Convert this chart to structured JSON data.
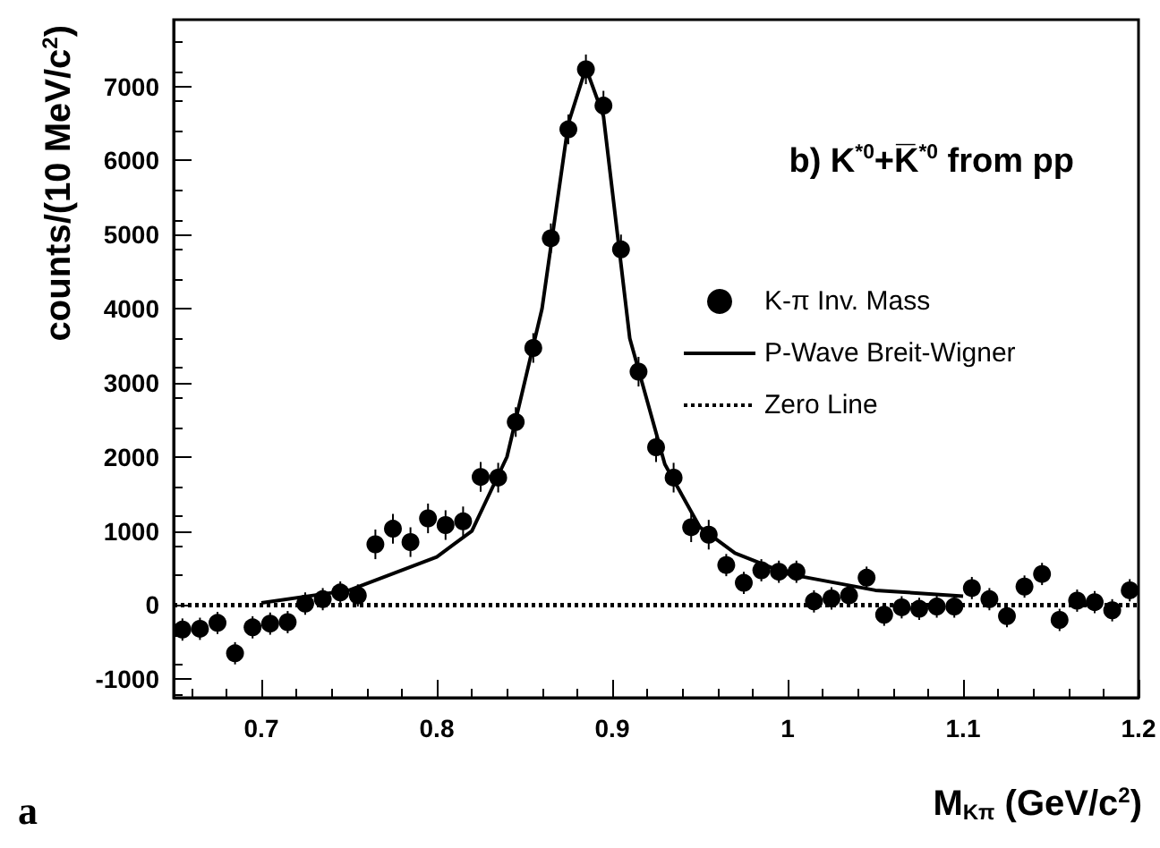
{
  "chart_data": {
    "type": "scatter",
    "title": "b) K$^{*0}$+K̅$^{*0}$ from pp",
    "xlabel": "M$_{Kπ}$ (GeV/c$^{2}$)",
    "ylabel": "counts/(10 MeV/c$^{2}$)",
    "annotations": [
      "a"
    ],
    "xlim": [
      0.65,
      1.2
    ],
    "xticks": [
      0.7,
      0.8,
      0.9,
      1,
      1.1,
      1.2
    ],
    "ylim": [
      -1250,
      7900
    ],
    "yticks": [
      -1000,
      0,
      1000,
      2000,
      3000,
      4000,
      5000,
      6000,
      7000
    ],
    "grid": false,
    "legend": "right",
    "series": [
      {
        "name": "K-π Inv. Mass",
        "color": "#000000",
        "marker": "circle",
        "x": [
          0.655,
          0.665,
          0.675,
          0.685,
          0.695,
          0.705,
          0.715,
          0.725,
          0.735,
          0.745,
          0.755,
          0.765,
          0.775,
          0.785,
          0.795,
          0.805,
          0.815,
          0.825,
          0.835,
          0.845,
          0.855,
          0.865,
          0.875,
          0.885,
          0.895,
          0.905,
          0.915,
          0.925,
          0.935,
          0.945,
          0.955,
          0.965,
          0.975,
          0.985,
          0.995,
          1.005,
          1.015,
          1.025,
          1.035,
          1.045,
          1.055,
          1.065,
          1.075,
          1.085,
          1.095,
          1.105,
          1.115,
          1.125,
          1.135,
          1.145,
          1.155,
          1.165,
          1.175,
          1.185,
          1.195
        ],
        "values": [
          -330,
          -320,
          -240,
          -650,
          -300,
          -250,
          -230,
          20,
          80,
          170,
          130,
          820,
          1030,
          850,
          1170,
          1080,
          1130,
          1730,
          1720,
          2470,
          3470,
          4950,
          6420,
          7230,
          6740,
          4800,
          3150,
          2130,
          1720,
          1050,
          950,
          540,
          300,
          470,
          450,
          450,
          50,
          90,
          130,
          370,
          -130,
          -30,
          -50,
          -20,
          -20,
          230,
          80,
          -150,
          250,
          420,
          -200,
          60,
          40,
          -70,
          200
        ],
        "errors": [
          150,
          150,
          150,
          150,
          150,
          150,
          150,
          150,
          150,
          150,
          150,
          200,
          200,
          200,
          200,
          200,
          200,
          200,
          200,
          200,
          200,
          200,
          200,
          200,
          200,
          200,
          200,
          200,
          200,
          200,
          200,
          150,
          150,
          150,
          150,
          150,
          150,
          150,
          150,
          150,
          150,
          150,
          150,
          150,
          150,
          150,
          150,
          150,
          150,
          150,
          150,
          150,
          150,
          150,
          150
        ]
      },
      {
        "name": "P-Wave Breit-Wigner",
        "type": "line",
        "color": "#000000",
        "marker": "none",
        "line_style": "solid",
        "x": [
          0.7,
          0.75,
          0.8,
          0.82,
          0.84,
          0.86,
          0.875,
          0.885,
          0.895,
          0.91,
          0.93,
          0.95,
          0.97,
          1.0,
          1.05,
          1.1
        ],
        "values": [
          30,
          200,
          650,
          1000,
          2000,
          4000,
          6500,
          7250,
          6600,
          3600,
          1900,
          1050,
          700,
          420,
          200,
          120
        ]
      },
      {
        "name": "Zero Line",
        "type": "line",
        "color": "#000000",
        "marker": "none",
        "line_style": "dotted",
        "x": [
          0.65,
          1.2
        ],
        "values": [
          0,
          0
        ]
      }
    ]
  }
}
